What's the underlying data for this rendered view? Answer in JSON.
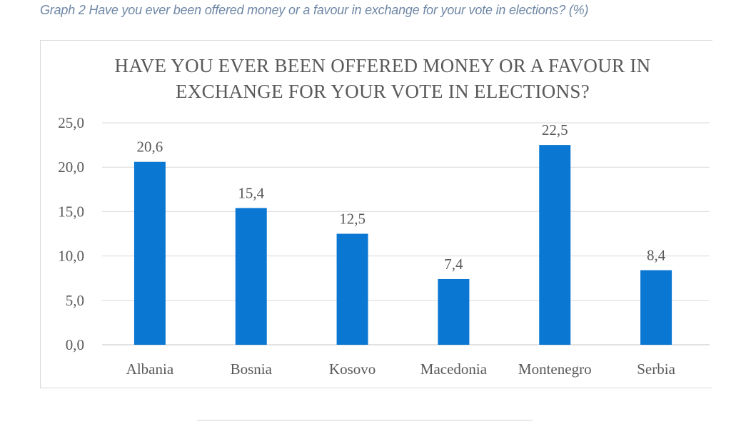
{
  "caption": "Graph 2 Have you ever been offered money or a favour in exchange for your vote in elections? (%)",
  "chart_data": {
    "type": "bar",
    "title_lines": [
      "HAVE YOU EVER BEEN OFFERED MONEY OR A FAVOUR IN",
      "EXCHANGE FOR YOUR VOTE IN ELECTIONS?"
    ],
    "categories": [
      "Albania",
      "Bosnia",
      "Kosovo",
      "Macedonia",
      "Montenegro",
      "Serbia"
    ],
    "values": [
      20.6,
      15.4,
      12.5,
      7.4,
      22.5,
      8.4
    ],
    "data_labels": [
      "20,6",
      "15,4",
      "12,5",
      "7,4",
      "22,5",
      "8,4"
    ],
    "y_ticks": [
      "0,0",
      "5,0",
      "10,0",
      "15,0",
      "20,0",
      "25,0"
    ],
    "ylim": [
      0,
      25
    ],
    "xlabel": "",
    "ylabel": "",
    "grid": true,
    "legend": "none",
    "bar_color": "#0a78d2",
    "grid_color": "#d9d9d9",
    "text_color": "#595959"
  }
}
